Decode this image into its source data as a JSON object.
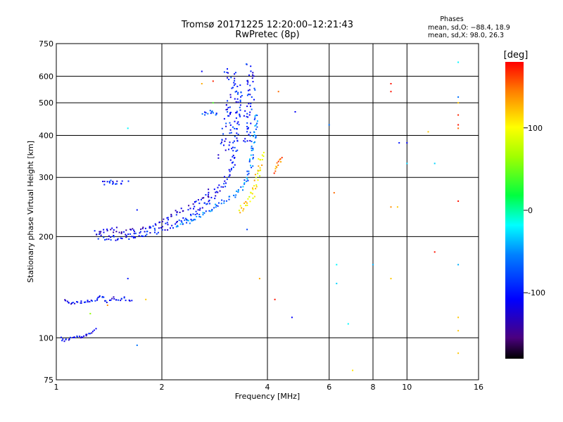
{
  "chart_data": {
    "type": "scatter",
    "title": "Tromsø 20171225 12:20:00–12:21:43",
    "subtitle": "RwPretec (8p)",
    "xlabel": "Frequency [MHz]",
    "ylabel": "Stationary phase Virtual Height [km]",
    "x_scale": "log",
    "y_scale": "log",
    "xlim": [
      1,
      16
    ],
    "ylim": [
      75,
      750
    ],
    "x_ticks": [
      1,
      2,
      4,
      6,
      8,
      10,
      16
    ],
    "y_ticks": [
      75,
      100,
      200,
      300,
      400,
      500,
      600,
      750
    ],
    "grid": true,
    "stats": {
      "header": "Phases",
      "line_o": "mean, sd,O: −88.4, 18.9",
      "line_x": "mean, sd,X: 98.0, 26.3"
    },
    "colorbar": {
      "label": "[deg]",
      "min": -180,
      "max": 180,
      "ticks": [
        100,
        0,
        -100
      ],
      "colormap": "rainbow",
      "top_color": "#ff0000",
      "bottom_color": "#000000"
    },
    "traces": [
      {
        "points": [
          [
            1.03,
            100
          ],
          [
            1.05,
            98
          ],
          [
            1.08,
            99
          ],
          [
            1.1,
            100
          ],
          [
            1.13,
            100
          ],
          [
            1.15,
            101
          ],
          [
            1.18,
            100
          ],
          [
            1.2,
            101
          ],
          [
            1.23,
            102
          ],
          [
            1.25,
            103
          ],
          [
            1.28,
            105
          ],
          [
            1.3,
            107
          ]
        ],
        "phase": -110,
        "spread": 1.5
      },
      {
        "points": [
          [
            1.05,
            130
          ],
          [
            1.1,
            127
          ],
          [
            1.2,
            128
          ],
          [
            1.3,
            129
          ],
          [
            1.35,
            133
          ],
          [
            1.4,
            128
          ],
          [
            1.45,
            131
          ],
          [
            1.5,
            129
          ],
          [
            1.55,
            131
          ],
          [
            1.6,
            130
          ],
          [
            1.65,
            129
          ]
        ],
        "phase": -110,
        "spread": 2
      },
      {
        "points": [
          [
            1.3,
            200
          ],
          [
            1.4,
            198
          ],
          [
            1.5,
            198
          ],
          [
            1.6,
            199
          ],
          [
            1.7,
            201
          ],
          [
            1.8,
            203
          ],
          [
            1.9,
            206
          ],
          [
            2.0,
            210
          ],
          [
            2.2,
            217
          ],
          [
            2.4,
            228
          ],
          [
            2.6,
            243
          ],
          [
            2.8,
            263
          ],
          [
            3.0,
            285
          ],
          [
            3.1,
            305
          ],
          [
            3.2,
            340
          ],
          [
            3.25,
            400
          ],
          [
            3.3,
            480
          ],
          [
            3.35,
            560
          ]
        ],
        "phase": -100,
        "spread": 4
      },
      {
        "points": [
          [
            1.3,
            205
          ],
          [
            1.45,
            210
          ],
          [
            1.6,
            205
          ],
          [
            1.8,
            210
          ],
          [
            2.0,
            220
          ],
          [
            2.2,
            235
          ],
          [
            2.4,
            245
          ],
          [
            2.6,
            260
          ],
          [
            2.8,
            275
          ]
        ],
        "phase": -115,
        "spread": 4
      },
      {
        "points": [
          [
            2.2,
            215
          ],
          [
            2.4,
            222
          ],
          [
            2.6,
            232
          ],
          [
            2.8,
            243
          ],
          [
            3.0,
            255
          ],
          [
            3.2,
            265
          ],
          [
            3.4,
            280
          ],
          [
            3.5,
            300
          ],
          [
            3.6,
            330
          ],
          [
            3.65,
            380
          ],
          [
            3.7,
            430
          ],
          [
            3.75,
            470
          ]
        ],
        "phase": -60,
        "spread": 3
      },
      {
        "points": [
          [
            3.0,
            350
          ],
          [
            3.05,
            400
          ],
          [
            3.1,
            450
          ],
          [
            3.15,
            500
          ],
          [
            3.2,
            540
          ],
          [
            3.15,
            600
          ],
          [
            3.1,
            650
          ]
        ],
        "phase": -100,
        "spread": 8
      },
      {
        "points": [
          [
            3.5,
            380
          ],
          [
            3.52,
            430
          ],
          [
            3.55,
            480
          ],
          [
            3.6,
            540
          ],
          [
            3.58,
            600
          ],
          [
            3.55,
            650
          ]
        ],
        "phase": -100,
        "spread": 6
      },
      {
        "points": [
          [
            3.3,
            235
          ],
          [
            3.4,
            245
          ],
          [
            3.5,
            255
          ],
          [
            3.6,
            265
          ],
          [
            3.7,
            280
          ],
          [
            3.75,
            300
          ],
          [
            3.8,
            330
          ],
          [
            3.85,
            360
          ]
        ],
        "phase": 110,
        "spread": 4
      },
      {
        "points": [
          [
            1.35,
            290
          ],
          [
            1.4,
            285
          ],
          [
            1.45,
            290
          ],
          [
            1.5,
            292
          ],
          [
            1.55,
            288
          ],
          [
            1.6,
            290
          ]
        ],
        "phase": -100,
        "spread": 4
      },
      {
        "points": [
          [
            4.2,
            310
          ],
          [
            4.25,
            320
          ],
          [
            4.3,
            330
          ],
          [
            4.35,
            340
          ],
          [
            4.4,
            350
          ]
        ],
        "phase": 150,
        "spread": 2
      },
      {
        "points": [
          [
            2.6,
            460
          ],
          [
            2.7,
            470
          ],
          [
            2.8,
            470
          ],
          [
            2.9,
            455
          ]
        ],
        "phase": -80,
        "spread": 3
      }
    ],
    "scatter": [
      [
        1.6,
        420,
        -20
      ],
      [
        1.7,
        240,
        -100
      ],
      [
        1.6,
        150,
        -100
      ],
      [
        1.8,
        130,
        120
      ],
      [
        1.4,
        125,
        140
      ],
      [
        1.7,
        95,
        -60
      ],
      [
        1.25,
        118,
        60
      ],
      [
        2.6,
        620,
        -110
      ],
      [
        2.6,
        570,
        130
      ],
      [
        2.8,
        580,
        170
      ],
      [
        2.8,
        500,
        40
      ],
      [
        3.5,
        210,
        -80
      ],
      [
        3.8,
        150,
        130
      ],
      [
        4.3,
        540,
        150
      ],
      [
        4.2,
        130,
        175
      ],
      [
        4.8,
        470,
        -110
      ],
      [
        4.7,
        115,
        -110
      ],
      [
        6.0,
        430,
        -60
      ],
      [
        6.2,
        270,
        150
      ],
      [
        6.3,
        165,
        -20
      ],
      [
        6.3,
        145,
        -30
      ],
      [
        6.8,
        110,
        -20
      ],
      [
        7.0,
        80,
        110
      ],
      [
        8.0,
        165,
        -40
      ],
      [
        9.0,
        570,
        175
      ],
      [
        9.0,
        540,
        175
      ],
      [
        9.0,
        245,
        140
      ],
      [
        9.4,
        245,
        120
      ],
      [
        9.0,
        150,
        120
      ],
      [
        9.5,
        380,
        -100
      ],
      [
        10.0,
        380,
        -110
      ],
      [
        10.0,
        330,
        -30
      ],
      [
        11.5,
        410,
        120
      ],
      [
        12.0,
        330,
        -30
      ],
      [
        12.0,
        180,
        175
      ],
      [
        14.0,
        660,
        -20
      ],
      [
        14.0,
        520,
        -60
      ],
      [
        14.0,
        500,
        120
      ],
      [
        14.0,
        460,
        170
      ],
      [
        14.0,
        430,
        175
      ],
      [
        14.0,
        420,
        150
      ],
      [
        14.0,
        255,
        175
      ],
      [
        14.0,
        165,
        -40
      ],
      [
        14.0,
        115,
        120
      ],
      [
        14.0,
        105,
        120
      ],
      [
        14.0,
        90,
        120
      ]
    ]
  }
}
